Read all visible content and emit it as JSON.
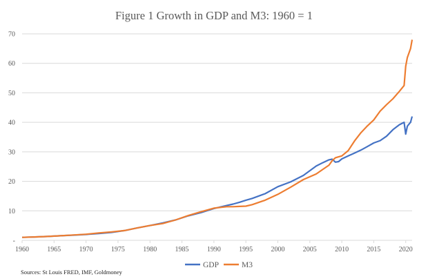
{
  "chart_data": {
    "type": "line",
    "title": "Figure 1 Growth in GDP and M3: 1960 = 1",
    "xlabel": "",
    "ylabel": "",
    "source_note": "Sources: St Louis FRED, IMF, Goldmoney",
    "xlim": [
      1960,
      2021
    ],
    "ylim": [
      0,
      70
    ],
    "grid": true,
    "legend_position": "bottom",
    "x_ticks": [
      "1960",
      "1965",
      "1970",
      "1975",
      "1980",
      "1985",
      "1990",
      "1995",
      "2000",
      "2005",
      "2010",
      "2015",
      "2020"
    ],
    "y_ticks": [
      "-",
      "10",
      "20",
      "30",
      "40",
      "50",
      "60",
      "70"
    ],
    "y_tick_values": [
      0,
      10,
      20,
      30,
      40,
      50,
      60,
      70
    ],
    "x": [
      1960,
      1962,
      1964,
      1966,
      1968,
      1970,
      1972,
      1974,
      1976,
      1978,
      1980,
      1982,
      1984,
      1986,
      1988,
      1990,
      1992,
      1993,
      1994,
      1995,
      1996,
      1998,
      2000,
      2002,
      2004,
      2006,
      2007,
      2008,
      2008.5,
      2009,
      2009.5,
      2010,
      2011,
      2012,
      2013,
      2014,
      2015,
      2016,
      2017,
      2018,
      2019,
      2019.75,
      2020,
      2020.25,
      2020.75,
      2021
    ],
    "series": [
      {
        "name": "GDP",
        "color": "#4472c4",
        "values": [
          1,
          1.15,
          1.3,
          1.55,
          1.75,
          2.0,
          2.3,
          2.7,
          3.3,
          4.2,
          5.0,
          5.9,
          6.9,
          8.3,
          9.4,
          10.8,
          11.8,
          12.3,
          12.9,
          13.6,
          14.2,
          15.8,
          18.2,
          19.8,
          22.0,
          25.2,
          26.3,
          27.3,
          27.5,
          26.5,
          26.7,
          27.6,
          28.6,
          29.6,
          30.6,
          31.8,
          33.0,
          33.8,
          35.3,
          37.5,
          39.2,
          40.0,
          36.0,
          38.7,
          40.0,
          42.0
        ]
      },
      {
        "name": "M3",
        "color": "#ed7d31",
        "values": [
          1,
          1.15,
          1.3,
          1.55,
          1.8,
          2.05,
          2.5,
          2.85,
          3.3,
          4.2,
          5.0,
          5.7,
          6.9,
          8.4,
          9.7,
          10.9,
          11.4,
          11.4,
          11.5,
          11.6,
          12.1,
          13.6,
          15.6,
          18.0,
          20.6,
          22.5,
          24.0,
          25.5,
          27.0,
          28.0,
          28.3,
          28.6,
          30.4,
          33.7,
          36.5,
          38.8,
          40.8,
          43.8,
          46.0,
          48.0,
          50.5,
          52.5,
          59.0,
          62.0,
          65.0,
          68.0
        ]
      }
    ]
  }
}
